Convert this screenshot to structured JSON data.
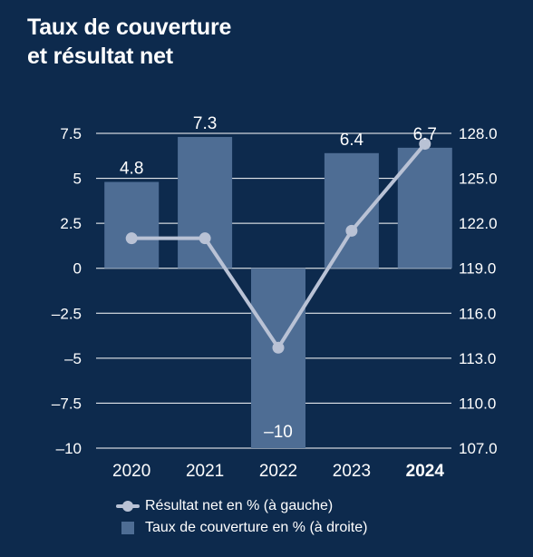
{
  "title_lines": [
    "Taux de couverture",
    "et résultat net"
  ],
  "colors": {
    "background": "#0d2a4d",
    "bar": "#4e6d94",
    "line": "#b9c2d5",
    "grid": "#ffffff",
    "text": "#ffffff"
  },
  "legend": {
    "line_label": "Résultat net en % (à gauche)",
    "bar_label": "Taux de couverture en % (à droite)"
  },
  "chart_data": {
    "type": "bar+line",
    "categories": [
      "2020",
      "2021",
      "2022",
      "2023",
      "2024"
    ],
    "highlighted_category": "2024",
    "series": [
      {
        "name": "Résultat net en % (à gauche)",
        "type": "line",
        "axis": "left",
        "values": [
          4.8,
          7.3,
          -10,
          6.4,
          6.7
        ],
        "data_labels": [
          "4.8",
          "7.3",
          "–10",
          "6.4",
          "6.7"
        ]
      },
      {
        "name": "Taux de couverture en % (à droite)",
        "type": "bar",
        "axis": "right",
        "values": [
          121.0,
          121.0,
          113.7,
          121.5,
          127.3
        ]
      }
    ],
    "left_axis": {
      "ylim": [
        -10,
        7.5
      ],
      "ticks": [
        7.5,
        5,
        2.5,
        0,
        -2.5,
        -5,
        -7.5,
        -10
      ],
      "tick_labels": [
        "7.5",
        "5",
        "2.5",
        "0",
        "–2.5",
        "–5",
        "–7.5",
        "–10"
      ]
    },
    "right_axis": {
      "ylim": [
        107.0,
        128.0
      ],
      "ticks": [
        128.0,
        125.0,
        122.0,
        119.0,
        116.0,
        113.0,
        110.0,
        107.0
      ],
      "tick_labels": [
        "128.0",
        "125.0",
        "122.0",
        "119.0",
        "116.0",
        "113.0",
        "110.0",
        "107.0"
      ]
    },
    "grid": true,
    "legend_position": "bottom"
  }
}
